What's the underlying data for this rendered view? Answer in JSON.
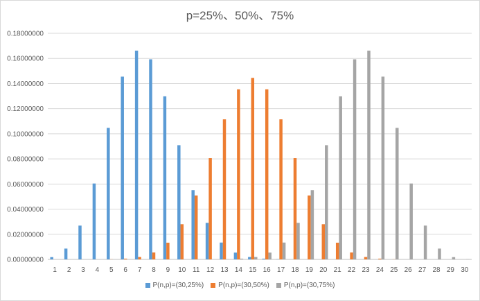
{
  "chart_data": {
    "type": "bar",
    "title": "p=25%、50%、75%",
    "categories": [
      "1",
      "2",
      "3",
      "4",
      "5",
      "6",
      "7",
      "8",
      "9",
      "10",
      "11",
      "12",
      "13",
      "14",
      "15",
      "16",
      "17",
      "18",
      "19",
      "20",
      "21",
      "22",
      "23",
      "24",
      "25",
      "26",
      "27",
      "28",
      "29",
      "30"
    ],
    "ylim": [
      0,
      0.18
    ],
    "yticks": [
      "0.00000000",
      "0.02000000",
      "0.04000000",
      "0.06000000",
      "0.08000000",
      "0.10000000",
      "0.12000000",
      "0.14000000",
      "0.16000000",
      "0.18000000"
    ],
    "grid": true,
    "legend_position": "bottom",
    "series": [
      {
        "name": "P(n,p)=(30,25%)",
        "color": "#5b9bd5",
        "values": [
          0.0018,
          0.0086,
          0.0269,
          0.0604,
          0.1047,
          0.1455,
          0.1662,
          0.1593,
          0.1298,
          0.0909,
          0.0551,
          0.0291,
          0.0134,
          0.0054,
          0.0019,
          0.0006,
          0.0002,
          0.0,
          0.0,
          0.0,
          0.0,
          0.0,
          0.0,
          0.0,
          0.0,
          0.0,
          0.0,
          0.0,
          0.0,
          0.0
        ]
      },
      {
        "name": "P(n,p)=(30,50%)",
        "color": "#ed7d31",
        "values": [
          0.0,
          0.0,
          0.0,
          0.0,
          0.0001,
          0.0006,
          0.0019,
          0.0055,
          0.0133,
          0.028,
          0.0509,
          0.0806,
          0.1115,
          0.1354,
          0.1445,
          0.1354,
          0.1115,
          0.0806,
          0.0509,
          0.028,
          0.0133,
          0.0055,
          0.0019,
          0.0006,
          0.0001,
          0.0,
          0.0,
          0.0,
          0.0,
          0.0
        ]
      },
      {
        "name": "P(n,p)=(30,75%)",
        "color": "#a5a5a5",
        "values": [
          0.0,
          0.0,
          0.0,
          0.0,
          0.0,
          0.0,
          0.0,
          0.0,
          0.0,
          0.0,
          0.0,
          0.0,
          0.0002,
          0.0006,
          0.0019,
          0.0054,
          0.0134,
          0.0291,
          0.0551,
          0.0909,
          0.1298,
          0.1593,
          0.1662,
          0.1455,
          0.1047,
          0.0604,
          0.0269,
          0.0086,
          0.0018,
          0.0002
        ]
      }
    ]
  }
}
